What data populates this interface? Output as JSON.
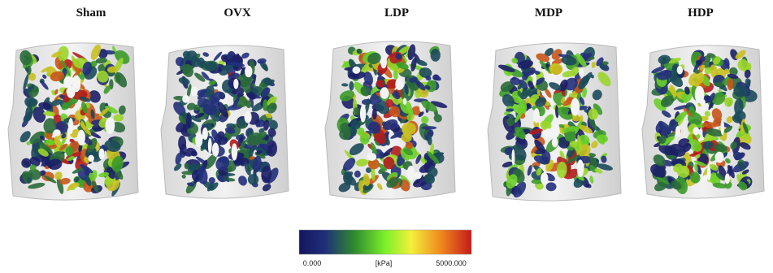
{
  "panels": [
    {
      "label": "Sham"
    },
    {
      "label": "OVX"
    },
    {
      "label": "LDP"
    },
    {
      "label": "MDP"
    },
    {
      "label": "HDP"
    }
  ],
  "colorbar": {
    "min_label": "0.000",
    "unit_label": "[kPa]",
    "max_label": "5000.000"
  }
}
